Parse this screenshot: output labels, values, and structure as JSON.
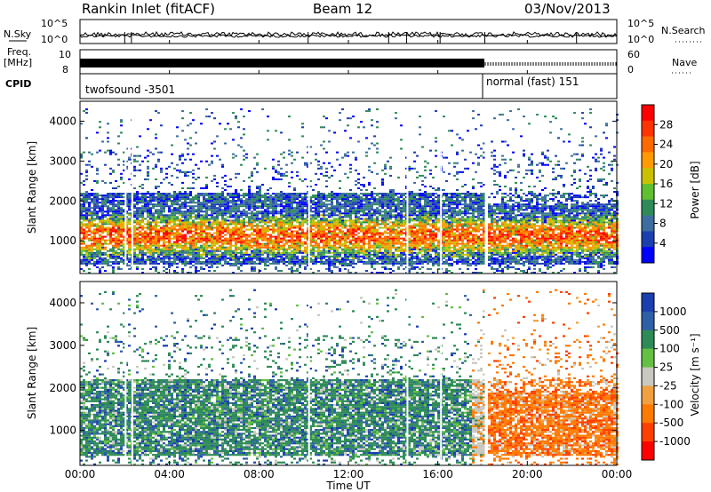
{
  "header": {
    "title_left": "Rankin Inlet (fitACF)",
    "title_mid": "Beam 12",
    "title_right": "03/Nov/2013"
  },
  "panels_top": {
    "nsky_label": "N.Sky",
    "nsky_ticks": [
      "10^5",
      "10^0"
    ],
    "nsearch_label": "N.Search",
    "nsearch_ticks": [
      "10^5",
      "10^0"
    ],
    "freq_label_1": "Freq.",
    "freq_label_2": "[MHz]",
    "freq_ticks": [
      "10",
      "8"
    ],
    "nave_label": "Nave",
    "nave_ticks": [
      "60",
      "0"
    ],
    "cpid_label": "CPID",
    "cpid_1": "twofsound -3501",
    "cpid_2": "normal (fast) 151"
  },
  "chart_data": [
    {
      "type": "heatmap",
      "title": "",
      "xlabel": "Time UT",
      "ylabel": "Slant Range [km]",
      "x_ticks": [
        "00:00",
        "04:00",
        "08:00",
        "12:00",
        "16:00",
        "20:00",
        "00:00"
      ],
      "y_ticks": [
        "1000",
        "2000",
        "3000",
        "4000"
      ],
      "ylim": [
        180,
        4500
      ],
      "colorbar_label": "Power [dB]",
      "colorbar_ticks": [
        "28",
        "24",
        "20",
        "16",
        "12",
        "8",
        "4"
      ],
      "colorbar_colors": [
        "#ff0000",
        "#ff3300",
        "#ff6a00",
        "#ff9a00",
        "#c9c000",
        "#5fbf2f",
        "#2e8b57",
        "#3c6fa0",
        "#1c3fb0",
        "#0000ff"
      ]
    },
    {
      "type": "heatmap",
      "title": "",
      "xlabel": "Time UT",
      "ylabel": "Slant Range [km]",
      "x_ticks": [
        "00:00",
        "04:00",
        "08:00",
        "12:00",
        "16:00",
        "20:00",
        "00:00"
      ],
      "y_ticks": [
        "1000",
        "2000",
        "3000",
        "4000"
      ],
      "ylim": [
        180,
        4500
      ],
      "colorbar_label": "Velocity [m s⁻¹]",
      "colorbar_ticks": [
        "1000",
        "500",
        "100",
        "25",
        "-25",
        "-100",
        "-500",
        "-1000"
      ],
      "colorbar_colors": [
        "#1a3fb0",
        "#2f5fa8",
        "#2e8b57",
        "#63c043",
        "#c8c8c0",
        "#f0a040",
        "#ff7a00",
        "#ff4000",
        "#ff0000"
      ]
    }
  ]
}
